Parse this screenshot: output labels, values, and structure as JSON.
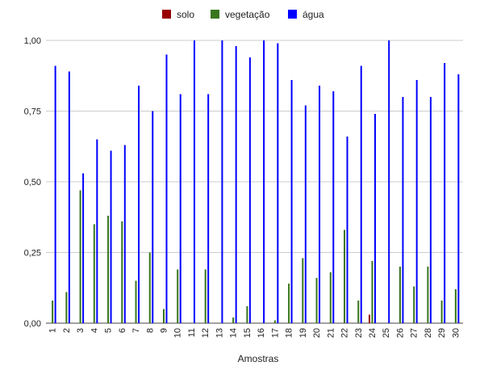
{
  "chart_data": {
    "type": "bar",
    "title": "",
    "xlabel": "Amostras",
    "ylabel": "",
    "ylim": [
      0,
      1
    ],
    "yticks": [
      "0,00",
      "0,25",
      "0,50",
      "0,75",
      "1,00"
    ],
    "ytick_values": [
      0,
      0.25,
      0.5,
      0.75,
      1.0
    ],
    "grid": true,
    "legend": "top-center",
    "categories": [
      "1",
      "2",
      "3",
      "4",
      "5",
      "6",
      "7",
      "8",
      "9",
      "10",
      "11",
      "12",
      "13",
      "14",
      "15",
      "16",
      "17",
      "18",
      "19",
      "20",
      "21",
      "22",
      "23",
      "24",
      "25",
      "26",
      "27",
      "28",
      "29",
      "30"
    ],
    "series": [
      {
        "name": "solo",
        "color": "#990000",
        "values": [
          0,
          0,
          0,
          0,
          0,
          0,
          0,
          0,
          0,
          0,
          0,
          0,
          0,
          0,
          0,
          0,
          0,
          0,
          0,
          0,
          0,
          0,
          0,
          0.03,
          0,
          0,
          0,
          0,
          0,
          0
        ]
      },
      {
        "name": "vegetação",
        "color": "#38761d",
        "values": [
          0.08,
          0.11,
          0.47,
          0.35,
          0.38,
          0.36,
          0.15,
          0.25,
          0.05,
          0.19,
          0,
          0.19,
          0,
          0.02,
          0.06,
          0,
          0.01,
          0.14,
          0.23,
          0.16,
          0.18,
          0.33,
          0.08,
          0.22,
          0,
          0.2,
          0.13,
          0.2,
          0.08,
          0.12
        ]
      },
      {
        "name": "água",
        "color": "#0000ff",
        "values": [
          0.91,
          0.89,
          0.53,
          0.65,
          0.61,
          0.63,
          0.84,
          0.75,
          0.95,
          0.81,
          1.0,
          0.81,
          1.0,
          0.98,
          0.94,
          1.0,
          0.99,
          0.86,
          0.77,
          0.84,
          0.82,
          0.66,
          0.91,
          0.74,
          1.0,
          0.8,
          0.86,
          0.8,
          0.92,
          0.88
        ]
      }
    ]
  }
}
